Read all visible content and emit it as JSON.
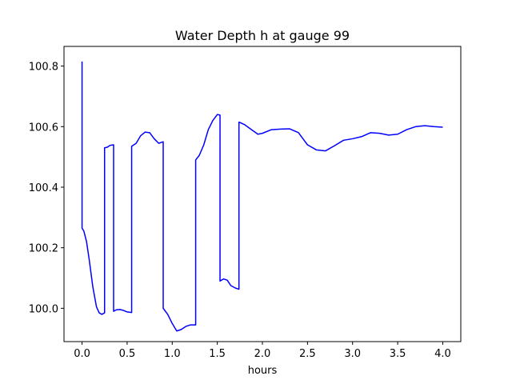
{
  "chart_data": {
    "type": "line",
    "title": "Water Depth h at gauge 99",
    "xlabel": "hours",
    "ylabel": "",
    "xlim": [
      -0.2,
      4.2
    ],
    "ylim": [
      99.89,
      100.865
    ],
    "xticks": [
      0.0,
      0.5,
      1.0,
      1.5,
      2.0,
      2.5,
      3.0,
      3.5,
      4.0
    ],
    "xtick_labels": [
      "0.0",
      "0.5",
      "1.0",
      "1.5",
      "2.0",
      "2.5",
      "3.0",
      "3.5",
      "4.0"
    ],
    "yticks": [
      100.0,
      100.2,
      100.4,
      100.6,
      100.8
    ],
    "ytick_labels": [
      "100.0",
      "100.2",
      "100.4",
      "100.6",
      "100.8"
    ],
    "grid": false,
    "series": [
      {
        "color": "#0000ff",
        "x": [
          0.0,
          0.0,
          0.02,
          0.05,
          0.08,
          0.12,
          0.16,
          0.19,
          0.22,
          0.25,
          0.25,
          0.28,
          0.31,
          0.35,
          0.35,
          0.38,
          0.42,
          0.46,
          0.5,
          0.55,
          0.55,
          0.6,
          0.65,
          0.7,
          0.75,
          0.8,
          0.85,
          0.9,
          0.9,
          0.95,
          1.0,
          1.05,
          1.1,
          1.15,
          1.2,
          1.26,
          1.26,
          1.3,
          1.35,
          1.4,
          1.45,
          1.5,
          1.53,
          1.53,
          1.57,
          1.61,
          1.65,
          1.7,
          1.74,
          1.74,
          1.8,
          1.88,
          1.95,
          2.0,
          2.1,
          2.2,
          2.3,
          2.4,
          2.5,
          2.6,
          2.7,
          2.8,
          2.9,
          3.0,
          3.1,
          3.2,
          3.3,
          3.4,
          3.5,
          3.6,
          3.7,
          3.8,
          3.9,
          4.0
        ],
        "y": [
          100.815,
          100.265,
          100.255,
          100.22,
          100.16,
          100.07,
          100.005,
          99.985,
          99.98,
          99.985,
          100.53,
          100.532,
          100.538,
          100.54,
          99.99,
          99.995,
          99.996,
          99.993,
          99.988,
          99.986,
          100.535,
          100.545,
          100.57,
          100.582,
          100.58,
          100.56,
          100.545,
          100.55,
          100.0,
          99.98,
          99.95,
          99.925,
          99.93,
          99.94,
          99.945,
          99.945,
          100.49,
          100.505,
          100.54,
          100.59,
          100.62,
          100.64,
          100.638,
          100.09,
          100.097,
          100.093,
          100.075,
          100.067,
          100.063,
          100.615,
          100.607,
          100.59,
          100.575,
          100.578,
          100.59,
          100.592,
          100.593,
          100.58,
          100.54,
          100.523,
          100.52,
          100.537,
          100.555,
          100.56,
          100.567,
          100.58,
          100.578,
          100.572,
          100.575,
          100.59,
          100.6,
          100.603,
          100.6,
          100.598
        ]
      }
    ]
  }
}
